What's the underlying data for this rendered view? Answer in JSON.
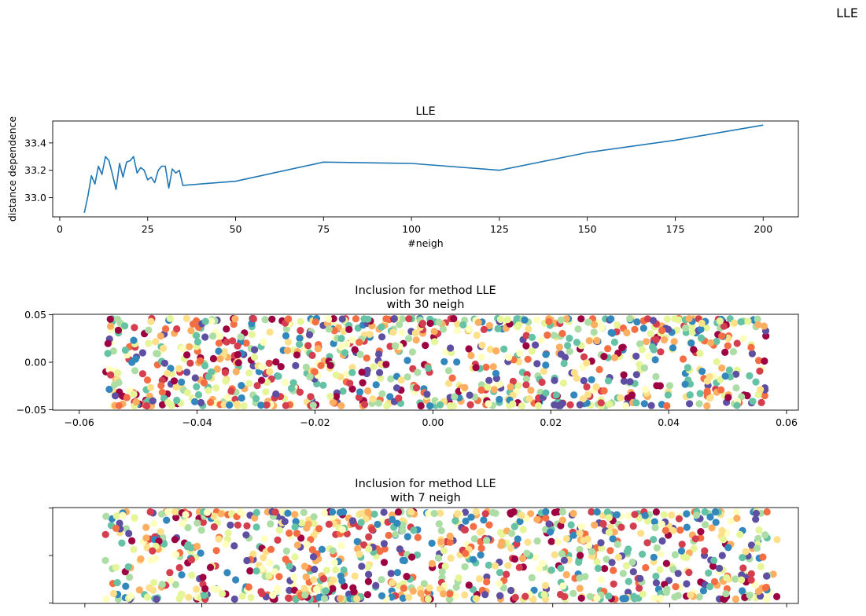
{
  "figure": {
    "suptitle": "LLE"
  },
  "chart_data": [
    {
      "type": "line",
      "title": "LLE",
      "xlabel": "#neigh",
      "ylabel": "distance dependence",
      "xlim": [
        -2,
        210
      ],
      "ylim": [
        32.86,
        33.56
      ],
      "xticks": [
        0,
        25,
        50,
        75,
        100,
        125,
        150,
        175,
        200
      ],
      "yticks": [
        33.0,
        33.2,
        33.4
      ],
      "ytick_labels": [
        "33.0",
        "33.2",
        "33.4"
      ],
      "color": "#1f77b4",
      "x": [
        7,
        8,
        9,
        10,
        11,
        12,
        13,
        14,
        15,
        16,
        17,
        18,
        19,
        20,
        21,
        22,
        23,
        24,
        25,
        26,
        27,
        28,
        29,
        30,
        31,
        32,
        33,
        34,
        35,
        50,
        75,
        100,
        125,
        150,
        175,
        200
      ],
      "y": [
        32.89,
        33.01,
        33.16,
        33.1,
        33.23,
        33.17,
        33.3,
        33.27,
        33.17,
        33.06,
        33.25,
        33.15,
        33.26,
        33.27,
        33.3,
        33.18,
        33.22,
        33.2,
        33.13,
        33.15,
        33.11,
        33.2,
        33.23,
        33.23,
        33.07,
        33.21,
        33.18,
        33.2,
        33.09,
        33.12,
        33.26,
        33.25,
        33.2,
        33.33,
        33.42,
        33.53
      ]
    },
    {
      "type": "scatter",
      "title": "Inclusion for method LLE\nwith 30 neigh",
      "title_lines": [
        "Inclusion for method LLE",
        "with 30 neigh"
      ],
      "xlim": [
        -0.0645,
        0.062
      ],
      "ylim": [
        -0.0505,
        0.0505
      ],
      "xticks": [
        -0.06,
        -0.04,
        -0.02,
        0.0,
        0.02,
        0.04,
        0.06
      ],
      "xtick_labels": [
        "−0.06",
        "−0.04",
        "−0.02",
        "0.00",
        "0.02",
        "0.04",
        "0.06"
      ],
      "yticks": [
        -0.05,
        0.0,
        0.05
      ],
      "ytick_labels": [
        "−0.05",
        "0.00",
        "0.05"
      ],
      "colormap": "Spectral",
      "n_points": 1000,
      "x_range": [
        -0.0555,
        0.0565
      ],
      "y_range": [
        -0.046,
        0.046
      ],
      "note_points": "approx. 1000 points spread across the x range, denser near y = ±0.045, colored by the Spectral colormap"
    },
    {
      "type": "scatter",
      "title": "Inclusion for method LLE\nwith 7 neigh",
      "title_lines": [
        "Inclusion for method LLE",
        "with 7 neigh"
      ],
      "xlim": [
        -0.0655,
        0.062
      ],
      "ylim": [
        -0.0505,
        0.0505
      ],
      "xticks": [
        -0.06,
        -0.04,
        -0.02,
        0.0,
        0.02,
        0.04,
        0.06
      ],
      "yticks": [
        -0.05,
        0.0,
        0.05
      ],
      "tick_labels_visible": false,
      "colormap": "Spectral",
      "n_points": 1000,
      "x_range": [
        -0.0565,
        0.0585
      ],
      "y_range": [
        -0.046,
        0.046
      ]
    }
  ],
  "colormap_spectral": [
    "#9e0142",
    "#d53e4f",
    "#f46d43",
    "#fdae61",
    "#fee08b",
    "#ffffbf",
    "#e6f598",
    "#abdda4",
    "#66c2a5",
    "#3288bd",
    "#5e4fa2"
  ]
}
